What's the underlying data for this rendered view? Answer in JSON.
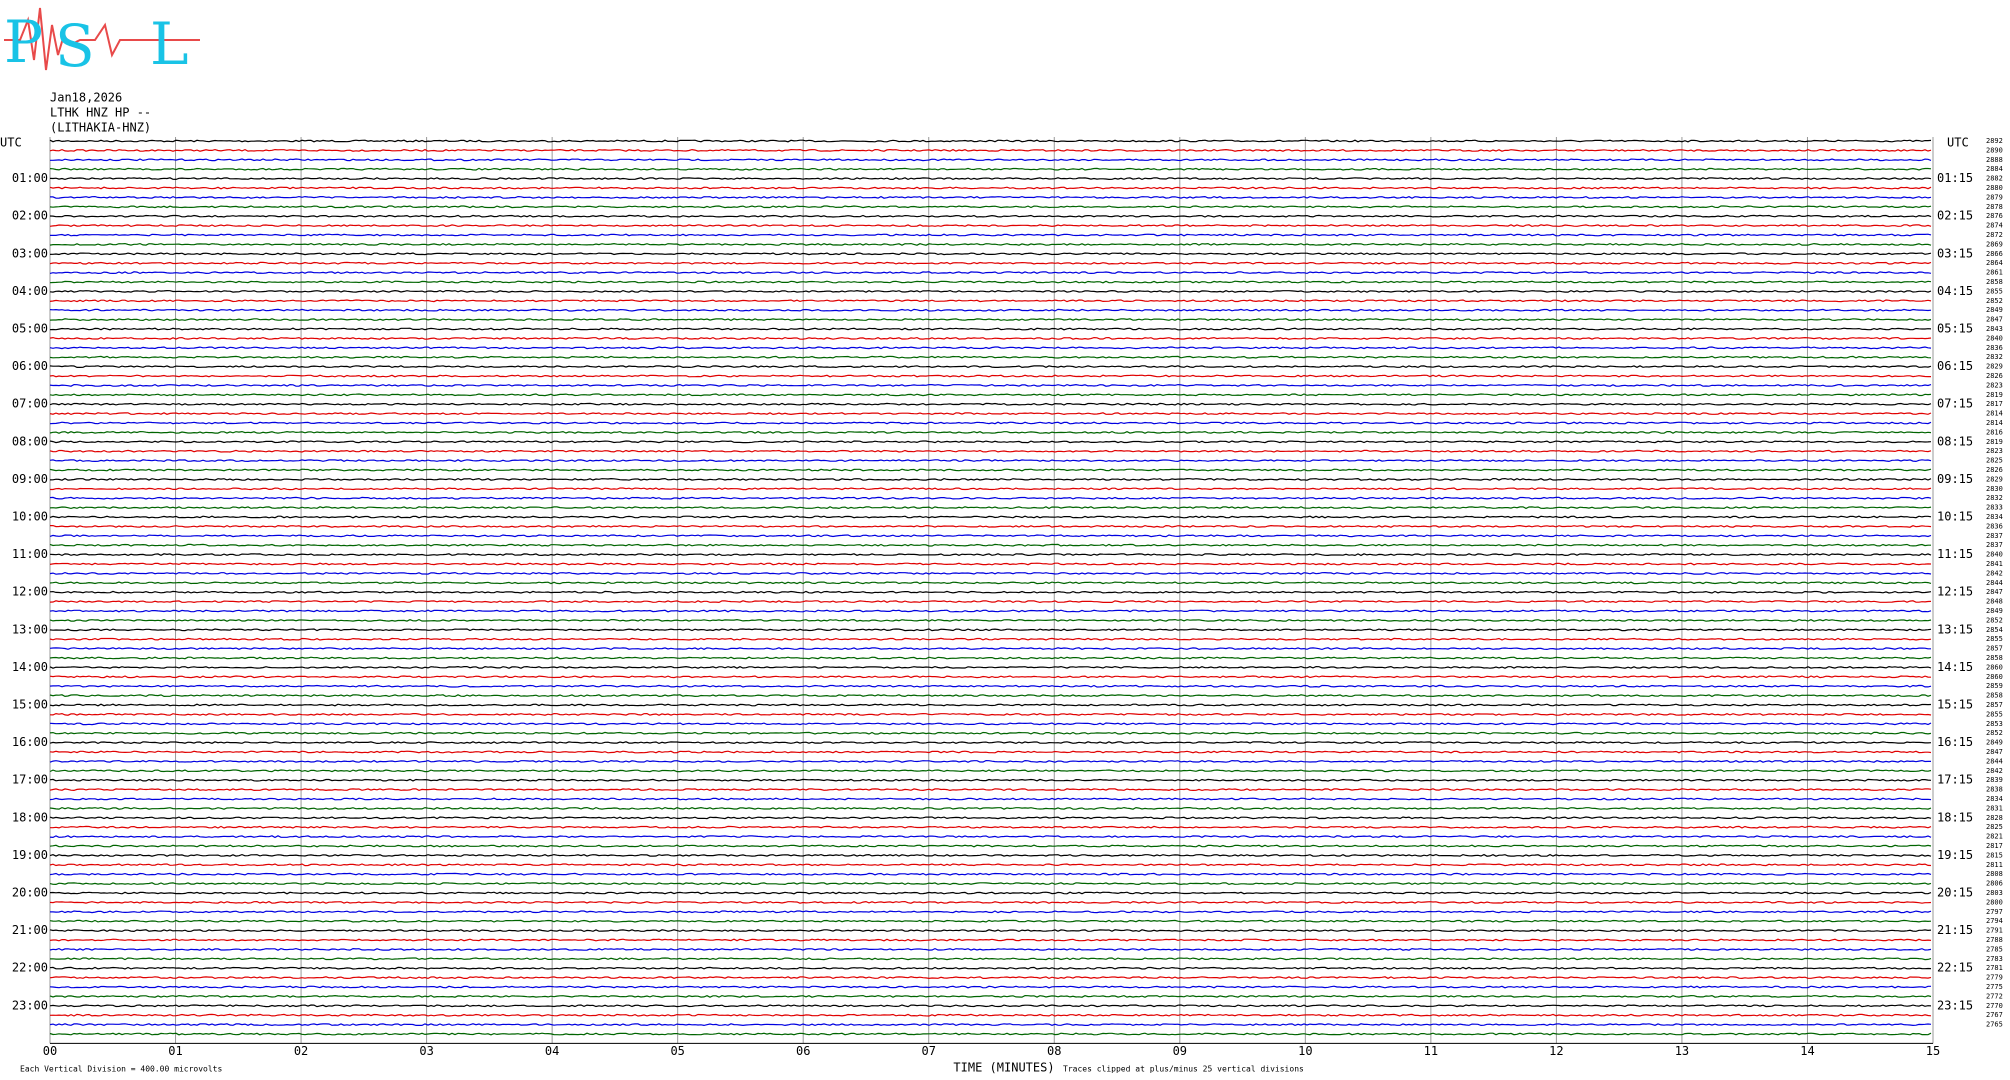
{
  "chart_data": {
    "type": "helicorder",
    "logo": [
      "P",
      "S",
      "L"
    ],
    "date": "Jan18,2026",
    "station": "LTHK HNZ HP --",
    "location": "(LITHAKIA-HNZ)",
    "utc_left": "UTC",
    "utc_right": "UTC",
    "left_labels": [
      "01:00",
      "02:00",
      "03:00",
      "04:00",
      "05:00",
      "06:00",
      "07:00",
      "08:00",
      "09:00",
      "10:00",
      "11:00",
      "12:00",
      "13:00",
      "14:00",
      "15:00",
      "16:00",
      "17:00",
      "18:00",
      "19:00",
      "20:00",
      "21:00",
      "22:00",
      "23:00"
    ],
    "right_labels": [
      "01:15",
      "02:15",
      "03:15",
      "04:15",
      "05:15",
      "06:15",
      "07:15",
      "08:15",
      "09:15",
      "10:15",
      "11:15",
      "12:15",
      "13:15",
      "14:15",
      "15:15",
      "16:15",
      "17:15",
      "18:15",
      "19:15",
      "20:15",
      "21:15",
      "22:15",
      "23:15"
    ],
    "trace_numbers": [
      "2892",
      "2890",
      "2888",
      "2884",
      "2882",
      "2880",
      "2879",
      "2878",
      "2876",
      "2874",
      "2872",
      "2869",
      "2866",
      "2864",
      "2861",
      "2858",
      "2855",
      "2852",
      "2849",
      "2847",
      "2843",
      "2840",
      "2836",
      "2832",
      "2829",
      "2826",
      "2823",
      "2819",
      "2817",
      "2814",
      "2814",
      "2816",
      "2819",
      "2823",
      "2825",
      "2826",
      "2829",
      "2830",
      "2832",
      "2833",
      "2834",
      "2836",
      "2837",
      "2837",
      "2840",
      "2841",
      "2842",
      "2844",
      "2847",
      "2848",
      "2849",
      "2852",
      "2854",
      "2855",
      "2857",
      "2858",
      "2860",
      "2860",
      "2859",
      "2858",
      "2857",
      "2855",
      "2853",
      "2852",
      "2849",
      "2847",
      "2844",
      "2842",
      "2839",
      "2838",
      "2834",
      "2831",
      "2828",
      "2825",
      "2821",
      "2817",
      "2815",
      "2811",
      "2808",
      "2806",
      "2803",
      "2800",
      "2797",
      "2794",
      "2791",
      "2788",
      "2785",
      "2783",
      "2781",
      "2779",
      "2775",
      "2772",
      "2770",
      "2767",
      "2765"
    ],
    "xlim": [
      0,
      15
    ],
    "xticks": [
      {
        "value": 0,
        "label": "00"
      },
      {
        "value": 1,
        "label": "01"
      },
      {
        "value": 2,
        "label": "02"
      },
      {
        "value": 3,
        "label": "03"
      },
      {
        "value": 4,
        "label": "04"
      },
      {
        "value": 5,
        "label": "05"
      },
      {
        "value": 6,
        "label": "06"
      },
      {
        "value": 7,
        "label": "07"
      },
      {
        "value": 8,
        "label": "08"
      },
      {
        "value": 9,
        "label": "09"
      },
      10,
      11,
      12,
      13,
      14,
      15
    ],
    "xlabel": "TIME (MINUTES)",
    "footer_left": "Each Vertical Division = 400.00 microvolts",
    "footer_right": "Traces clipped at plus/minus 25 vertical divisions",
    "colors": [
      "#000000",
      "#e00000",
      "#0000e0",
      "#006400"
    ],
    "grid_color": "#999999"
  }
}
